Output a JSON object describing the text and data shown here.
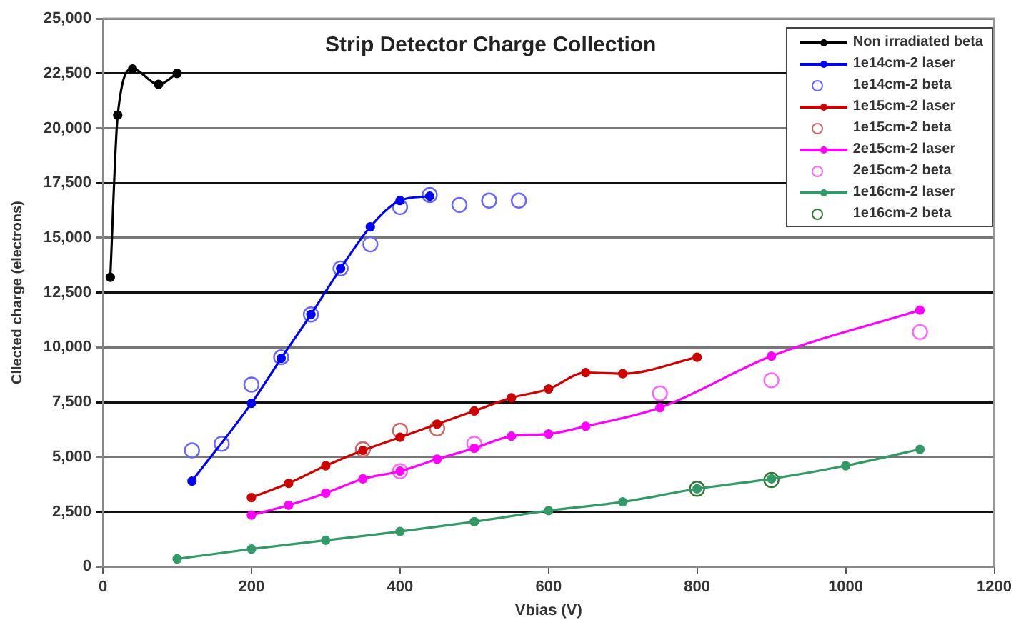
{
  "chart_data": {
    "type": "line",
    "title": "Strip Detector Charge Collection",
    "xlabel": "Vbias (V)",
    "ylabel": "Cllected charge (electrons)",
    "xlim": [
      0,
      1200
    ],
    "xticks": [
      0,
      200,
      400,
      600,
      800,
      1000,
      1200
    ],
    "ylim": [
      0,
      25000
    ],
    "yticks": [
      0,
      {
        "value": 2500,
        "label": "2,500"
      },
      {
        "value": 5000,
        "label": "5,000"
      },
      {
        "value": 7500,
        "label": "7,500"
      },
      {
        "value": 10000,
        "label": "10,000"
      },
      {
        "value": 12500,
        "label": "12,500"
      },
      {
        "value": 15000,
        "label": "15,000"
      },
      {
        "value": 17500,
        "label": "17,500"
      },
      {
        "value": 20000,
        "label": "20,000"
      },
      {
        "value": 22500,
        "label": "22,500"
      },
      {
        "value": 25000,
        "label": "25,000"
      }
    ],
    "grid": "y",
    "legend": "top right",
    "marker": "circle",
    "line_style": "solid",
    "series": [
      {
        "name": "Non irradiated beta",
        "type": "line",
        "color": "#000000",
        "x": [
          10,
          20,
          40,
          75,
          100
        ],
        "values": [
          13200,
          20600,
          22700,
          22000,
          22500
        ]
      },
      {
        "name": "1e14cm-2 laser",
        "type": "line",
        "color": "#0000ff",
        "x": [
          120,
          200,
          240,
          280,
          320,
          360,
          400,
          440
        ],
        "values": [
          3900,
          7450,
          9500,
          11500,
          13600,
          15500,
          16700,
          16900
        ]
      },
      {
        "name": "1e14cm-2 beta",
        "type": "scatter",
        "color": "#6666ff",
        "x": [
          120,
          160,
          200,
          240,
          280,
          320,
          360,
          400,
          440,
          480,
          520,
          560
        ],
        "values": [
          5300,
          5600,
          8300,
          9550,
          11500,
          13600,
          14700,
          16400,
          16950,
          16500,
          16700,
          16700
        ]
      },
      {
        "name": "1e15cm-2 laser",
        "type": "line",
        "color": "#cc0000",
        "x": [
          200,
          250,
          300,
          350,
          400,
          450,
          500,
          550,
          600,
          650,
          700,
          800
        ],
        "values": [
          3150,
          3800,
          4600,
          5300,
          5900,
          6500,
          7100,
          7700,
          8100,
          8850,
          8800,
          9550
        ]
      },
      {
        "name": "1e15cm-2 beta",
        "type": "scatter",
        "color": "#cc6666",
        "x": [
          350,
          400,
          450
        ],
        "values": [
          5350,
          6200,
          6300
        ]
      },
      {
        "name": "2e15cm-2 laser",
        "type": "line",
        "color": "#ff00ff",
        "x": [
          200,
          250,
          300,
          350,
          400,
          450,
          500,
          550,
          600,
          650,
          750,
          900,
          1100
        ],
        "values": [
          2350,
          2800,
          3350,
          4000,
          4350,
          4900,
          5400,
          5950,
          6050,
          6400,
          7250,
          9600,
          11700
        ]
      },
      {
        "name": "2e15cm-2 beta",
        "type": "scatter",
        "color": "#ff66ff",
        "x": [
          400,
          500,
          750,
          900,
          1100
        ],
        "values": [
          4350,
          5600,
          7900,
          8500,
          10700
        ]
      },
      {
        "name": "1e16cm-2 laser",
        "type": "line",
        "color": "#339966",
        "x": [
          100,
          200,
          300,
          400,
          500,
          600,
          700,
          800,
          900,
          1000,
          1100
        ],
        "values": [
          350,
          800,
          1200,
          1600,
          2050,
          2550,
          2950,
          3550,
          4000,
          4600,
          5350
        ]
      },
      {
        "name": "1e16cm-2 beta",
        "type": "scatter",
        "color": "#337733",
        "x": [
          800,
          900
        ],
        "values": [
          3550,
          3950
        ]
      }
    ]
  }
}
